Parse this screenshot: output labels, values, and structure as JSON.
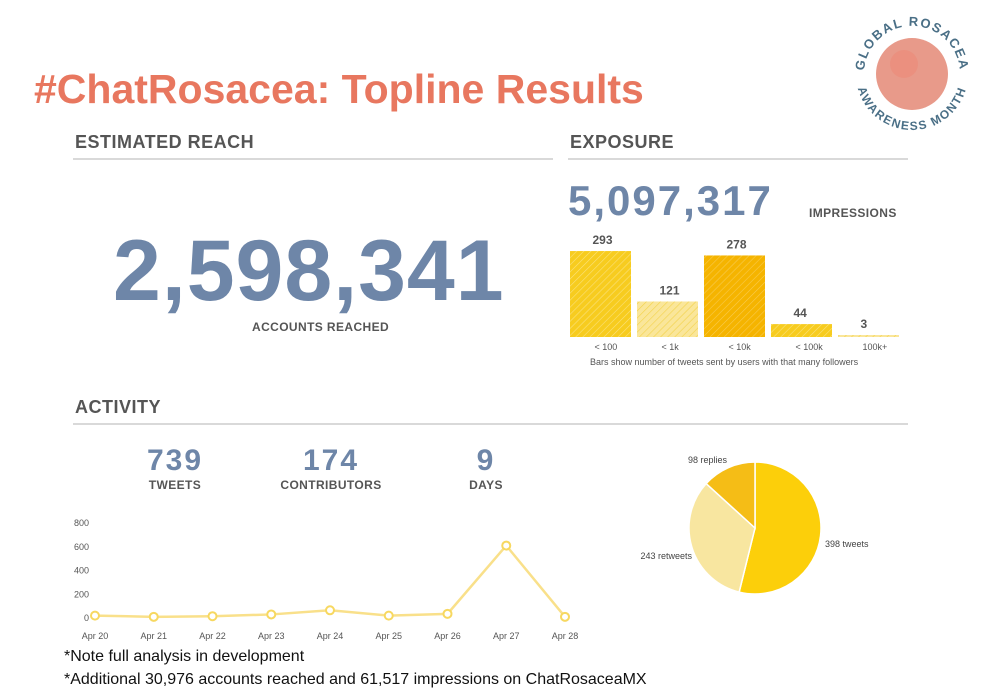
{
  "header": {
    "title": "#ChatRosacea: Topline Results",
    "logo_text_top": "GLOBAL ROSACEA",
    "logo_text_bottom": "AWARENESS MONTH"
  },
  "reach": {
    "heading": "ESTIMATED REACH",
    "value": "2,598,341",
    "caption": "ACCOUNTS REACHED"
  },
  "exposure": {
    "heading": "EXPOSURE",
    "value": "5,097,317",
    "unit": "IMPRESSIONS",
    "note": "Bars show number of tweets sent by users with that many followers"
  },
  "activity": {
    "heading": "ACTIVITY",
    "stats": [
      {
        "value": "739",
        "label": "TWEETS"
      },
      {
        "value": "174",
        "label": "CONTRIBUTORS"
      },
      {
        "value": "9",
        "label": "DAYS"
      }
    ]
  },
  "footnotes": {
    "note1": "*Note full analysis in development",
    "note2": "*Additional 30,976 accounts reached and 61,517 impressions on ChatRosaceaMX"
  },
  "colors": {
    "title": "#e8775f",
    "number": "#6e86a8",
    "bar_bright": "#f7cc1f",
    "bar_light": "#f9e08a",
    "bar_orange": "#f5b400",
    "line": "#f9e08a",
    "pie_tweets": "#fccf0a",
    "pie_retweets": "#f8e6a0",
    "pie_replies": "#f5bd16",
    "logo_circle": "#e89a8a",
    "logo_text": "#4a6f86"
  },
  "chart_data": [
    {
      "type": "bar",
      "categories": [
        "< 100",
        "< 1k",
        "< 10k",
        "< 100k",
        "100k+"
      ],
      "values": [
        293,
        121,
        278,
        44,
        3
      ],
      "ylim": [
        0,
        300
      ]
    },
    {
      "type": "line",
      "x": [
        "Apr 20",
        "Apr 21",
        "Apr 22",
        "Apr 23",
        "Apr 24",
        "Apr 25",
        "Apr 26",
        "Apr 27",
        "Apr 28"
      ],
      "y": [
        20,
        10,
        15,
        30,
        65,
        20,
        35,
        610,
        10
      ],
      "yticks": [
        0,
        200,
        400,
        600,
        800
      ],
      "ylim": [
        0,
        800
      ]
    },
    {
      "type": "pie",
      "slices": [
        {
          "label": "398 tweets",
          "value": 398
        },
        {
          "label": "243 retweets",
          "value": 243
        },
        {
          "label": "98 replies",
          "value": 98
        }
      ]
    }
  ]
}
